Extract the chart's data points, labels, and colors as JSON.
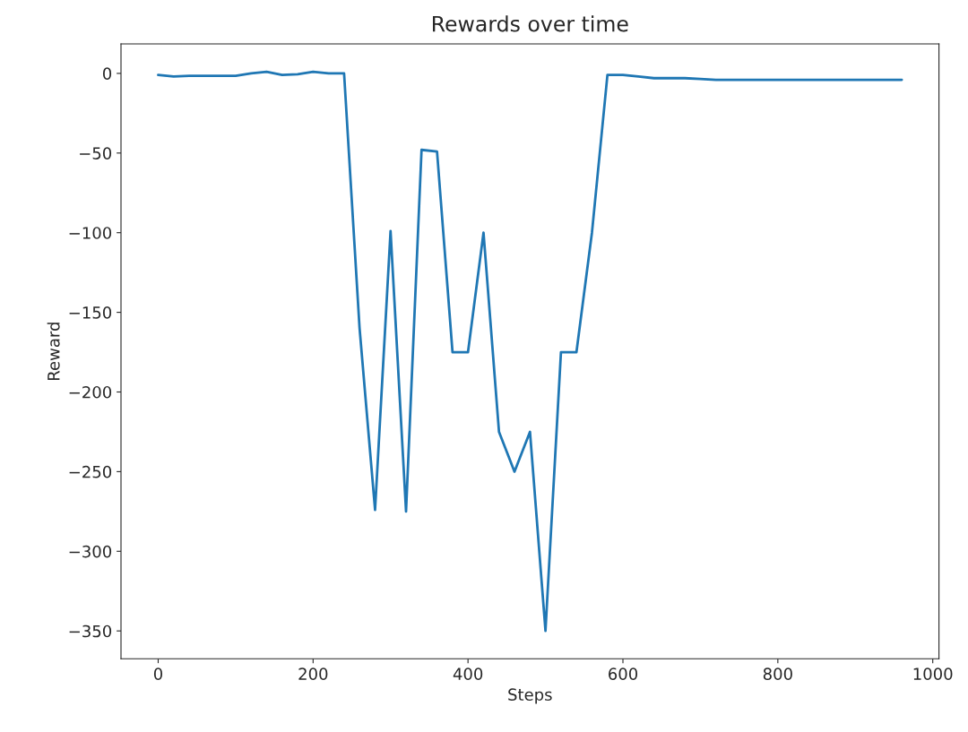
{
  "chart_data": {
    "type": "line",
    "title": "Rewards over time",
    "xlabel": "Steps",
    "ylabel": "Reward",
    "x": [
      0,
      20,
      40,
      60,
      80,
      100,
      120,
      140,
      160,
      180,
      200,
      220,
      240,
      260,
      280,
      300,
      320,
      340,
      360,
      380,
      400,
      420,
      440,
      460,
      480,
      500,
      520,
      540,
      560,
      580,
      600,
      620,
      640,
      660,
      680,
      700,
      720,
      740,
      760,
      780,
      800,
      820,
      840,
      860,
      880,
      900,
      920,
      940,
      960
    ],
    "series": [
      {
        "color": "#1f77b4",
        "values": [
          -1,
          -2,
          -1.5,
          -1.5,
          -1.5,
          -1.5,
          0,
          1,
          -1,
          -0.5,
          1,
          0,
          0,
          -160,
          -274,
          -99,
          -275,
          -48,
          -49,
          -175,
          -175,
          -100,
          -225,
          -250,
          -225,
          -350,
          -175,
          -175,
          -100,
          -1,
          -1,
          -2,
          -3,
          -3,
          -3,
          -3.5,
          -4,
          -4,
          -4,
          -4,
          -4,
          -4,
          -4,
          -4,
          -4,
          -4,
          -4,
          -4,
          -4
        ]
      }
    ],
    "xlim": [
      -48,
      1008
    ],
    "ylim": [
      -367.5,
      18.5
    ],
    "xticks": [
      0,
      200,
      400,
      600,
      800,
      1000
    ],
    "yticks": [
      {
        "value": 0,
        "label": "0"
      },
      {
        "value": -50,
        "label": "−50"
      },
      {
        "value": -100,
        "label": "−100"
      },
      {
        "value": -150,
        "label": "−150"
      },
      {
        "value": -200,
        "label": "−200"
      },
      {
        "value": -250,
        "label": "−250"
      },
      {
        "value": -300,
        "label": "−300"
      },
      {
        "value": -350,
        "label": "−350"
      }
    ],
    "grid": false,
    "legend": false
  }
}
